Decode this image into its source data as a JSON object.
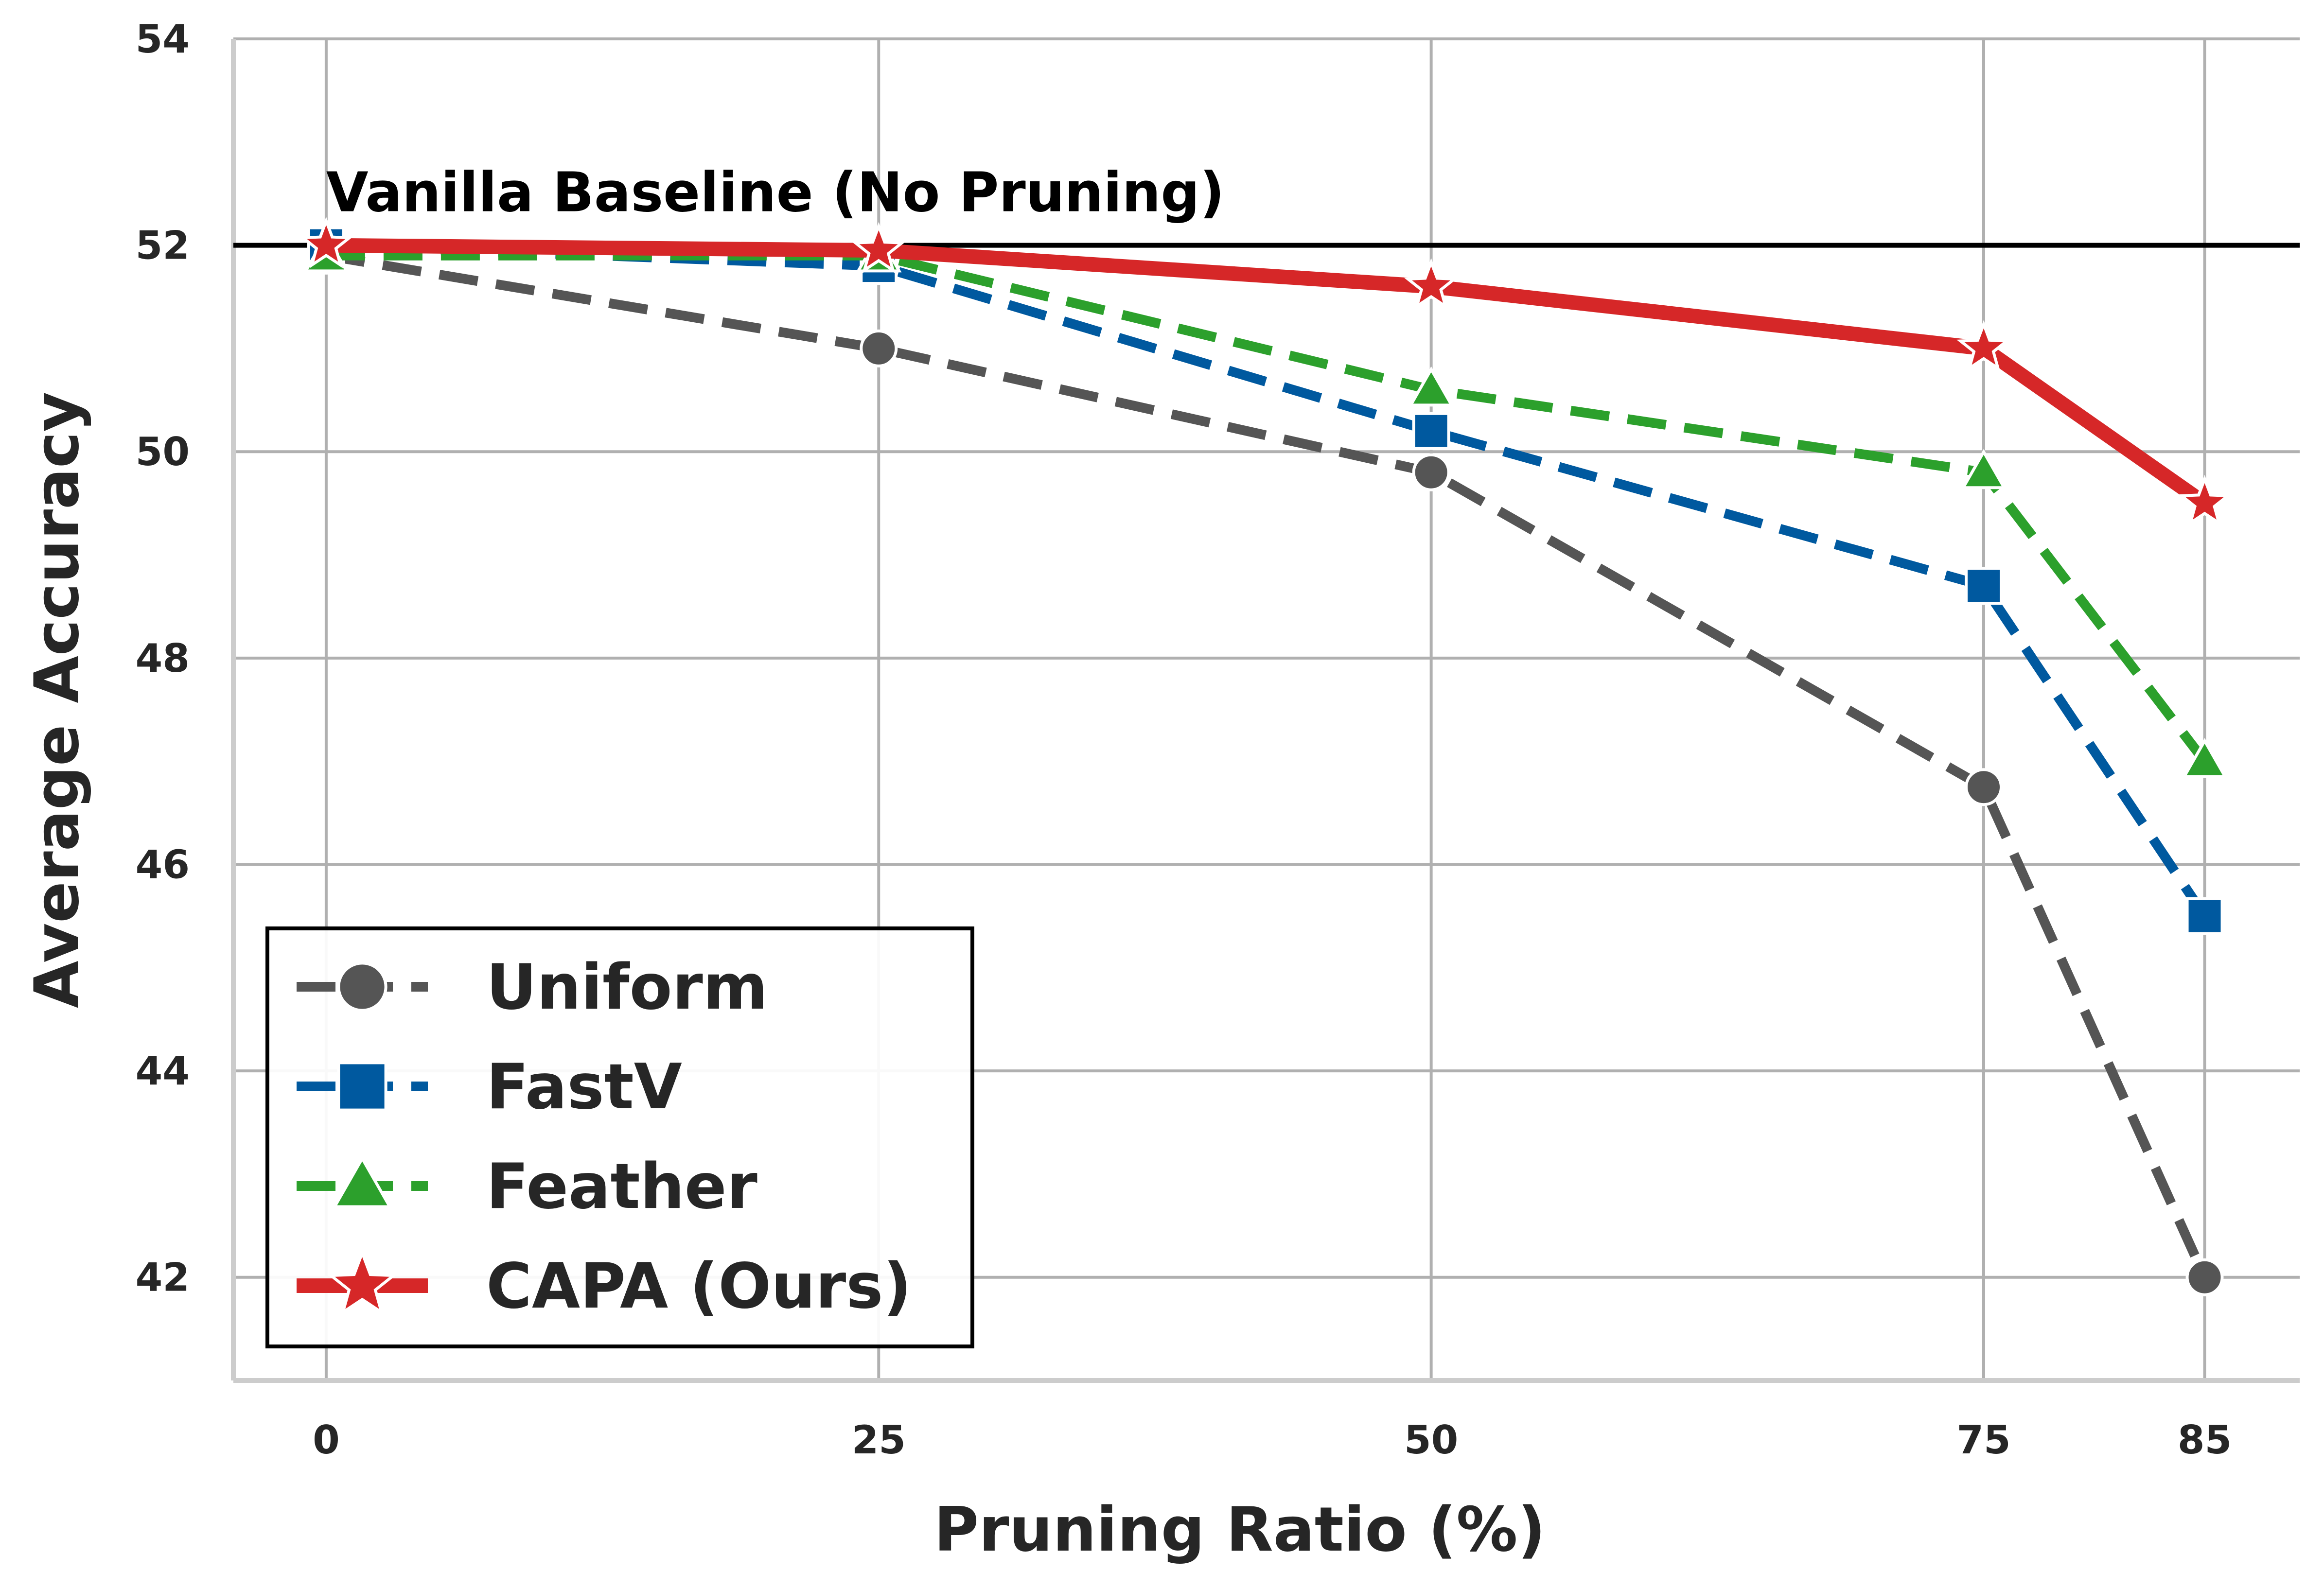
{
  "chart_data": {
    "type": "line",
    "title": "",
    "xlabel": "Pruning Ratio (%)",
    "ylabel": "Average Accuracy",
    "x": [
      0,
      25,
      50,
      75,
      85
    ],
    "x_ticks": [
      "0",
      "25",
      "50",
      "75",
      "85"
    ],
    "y_ticks": [
      "42",
      "44",
      "46",
      "48",
      "50",
      "52",
      "54"
    ],
    "xlim": [
      -4.2,
      89.3
    ],
    "ylim": [
      41.0,
      54.0
    ],
    "grid": true,
    "legend_position": "lower-left",
    "baseline": {
      "value": 52.0,
      "label": "Vanilla Baseline (No Pruning)",
      "color": "#000000"
    },
    "series": [
      {
        "name": "Uniform",
        "values": [
          51.9,
          51.0,
          49.8,
          46.75,
          42.0
        ],
        "color": "#555555",
        "marker": "circle",
        "dashed": true
      },
      {
        "name": "FastV",
        "values": [
          52.0,
          51.8,
          50.2,
          48.7,
          45.5
        ],
        "color": "#00599f",
        "marker": "square",
        "dashed": true
      },
      {
        "name": "Feather",
        "values": [
          51.9,
          51.9,
          50.6,
          49.8,
          47.0
        ],
        "color": "#2ca02c",
        "marker": "triangle",
        "dashed": true
      },
      {
        "name": "CAPA (Ours)",
        "values": [
          52.0,
          51.95,
          51.6,
          51.0,
          49.5
        ],
        "color": "#d62728",
        "marker": "star",
        "dashed": false
      }
    ]
  }
}
